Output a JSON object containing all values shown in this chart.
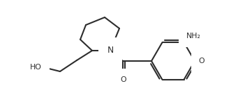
{
  "bg_color": "#ffffff",
  "line_color": "#2d2d2d",
  "line_width": 1.5,
  "text_color": "#2d2d2d",
  "font_size": 7.8,
  "fig_width": 3.41,
  "fig_height": 1.5,
  "dpi": 100,
  "N_label": "N",
  "HO_label": "HO",
  "O_label": "O",
  "NH2_label": "NH₂",
  "OMe_label": "O"
}
